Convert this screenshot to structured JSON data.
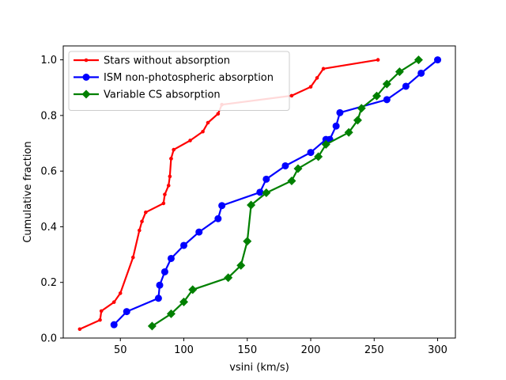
{
  "chart_data": {
    "type": "line",
    "xlabel": "vsini (km/s)",
    "ylabel": "Cumulative fraction",
    "xlim": [
      5,
      314
    ],
    "ylim": [
      0,
      1.05
    ],
    "xticks": [
      50,
      100,
      150,
      200,
      250,
      300
    ],
    "yticks": [
      0.0,
      0.2,
      0.4,
      0.6,
      0.8,
      1.0
    ],
    "xtick_labels": [
      "50",
      "100",
      "150",
      "200",
      "250",
      "300"
    ],
    "ytick_labels": [
      "0.0",
      "0.2",
      "0.4",
      "0.6",
      "0.8",
      "1.0"
    ],
    "grid": false,
    "legend_position": "upper-left",
    "series": [
      {
        "name": "Stars without absorption",
        "color": "#ff0000",
        "marker": "point",
        "x": [
          18,
          34,
          35,
          45,
          50,
          60,
          65,
          67,
          70,
          84,
          85,
          88,
          89,
          90,
          90,
          92,
          105,
          115,
          119,
          127,
          130,
          185,
          200,
          205,
          210,
          253
        ],
        "y": [
          0.032,
          0.065,
          0.097,
          0.129,
          0.161,
          0.29,
          0.387,
          0.419,
          0.452,
          0.484,
          0.516,
          0.548,
          0.581,
          0.645,
          0.645,
          0.677,
          0.71,
          0.742,
          0.774,
          0.806,
          0.839,
          0.871,
          0.903,
          0.935,
          0.968,
          1.0
        ]
      },
      {
        "name": "ISM non-photospheric absorption",
        "color": "#0000ff",
        "marker": "circle",
        "x": [
          45,
          55,
          80,
          81,
          85,
          90,
          100,
          112,
          127,
          130,
          160,
          165,
          180,
          200,
          212,
          215,
          220,
          223,
          260,
          275,
          287,
          300
        ],
        "y": [
          0.048,
          0.095,
          0.143,
          0.19,
          0.238,
          0.286,
          0.333,
          0.381,
          0.429,
          0.476,
          0.524,
          0.571,
          0.619,
          0.667,
          0.714,
          0.714,
          0.762,
          0.81,
          0.857,
          0.905,
          0.952,
          1.0
        ]
      },
      {
        "name": "Variable CS absorption",
        "color": "#008000",
        "marker": "diamond",
        "x": [
          75,
          90,
          100,
          107,
          135,
          145,
          150,
          153,
          165,
          185,
          190,
          206,
          212,
          230,
          237,
          240,
          252,
          260,
          270,
          285
        ],
        "y": [
          0.043,
          0.087,
          0.13,
          0.174,
          0.217,
          0.261,
          0.348,
          0.478,
          0.522,
          0.565,
          0.609,
          0.652,
          0.696,
          0.739,
          0.783,
          0.826,
          0.87,
          0.913,
          0.957,
          1.0
        ]
      }
    ]
  }
}
